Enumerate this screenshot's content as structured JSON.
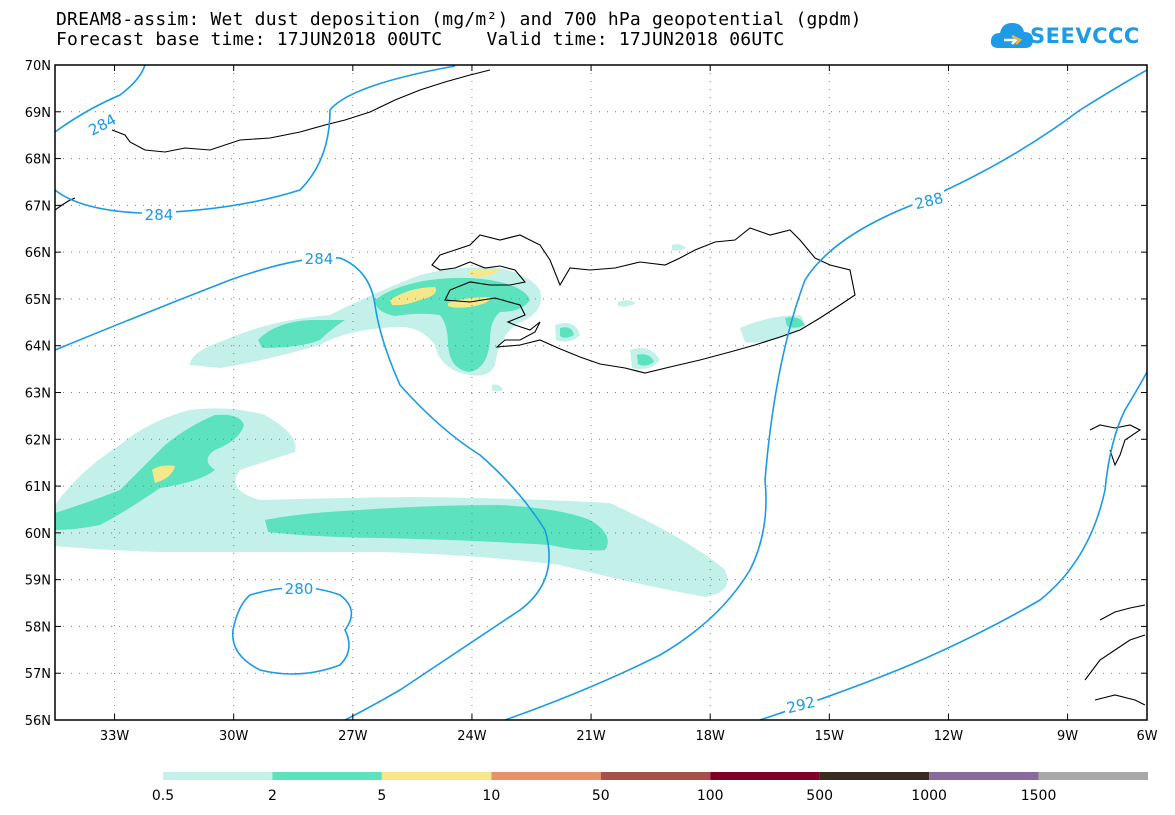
{
  "header": {
    "title_line1": "DREAM8-assim: Wet dust deposition (mg/m²) and 700 hPa geopotential (gpdm)",
    "title_line2": "Forecast base time: 17JUN2018 00UTC    Valid time: 17JUN2018 06UTC",
    "logo_text": "SEEVCCC"
  },
  "map": {
    "lat_labels": [
      "70N",
      "69N",
      "68N",
      "67N",
      "66N",
      "65N",
      "64N",
      "63N",
      "62N",
      "61N",
      "60N",
      "59N",
      "58N",
      "57N",
      "56N"
    ],
    "lon_labels": [
      "33W",
      "30W",
      "27W",
      "24W",
      "21W",
      "18W",
      "15W",
      "12W",
      "9W",
      "6W"
    ],
    "contour_labels": [
      {
        "text": "284",
        "isoline": 284
      },
      {
        "text": "284",
        "isoline": 284
      },
      {
        "text": "284",
        "isoline": 284
      },
      {
        "text": "288",
        "isoline": 288
      },
      {
        "text": "280",
        "isoline": 280
      },
      {
        "text": "292",
        "isoline": 292
      }
    ],
    "contour_color": "#1a9be6",
    "coast_color": "#000000"
  },
  "legend": {
    "colors": [
      "#c3f1ea",
      "#5ce2bd",
      "#f6e88a",
      "#e8926a",
      "#a8504a",
      "#800027",
      "#3a2a20",
      "#8a6a9a",
      "#a8a8a8"
    ],
    "labels": [
      "0.5",
      "2",
      "5",
      "10",
      "50",
      "100",
      "500",
      "1000",
      "1500"
    ]
  }
}
